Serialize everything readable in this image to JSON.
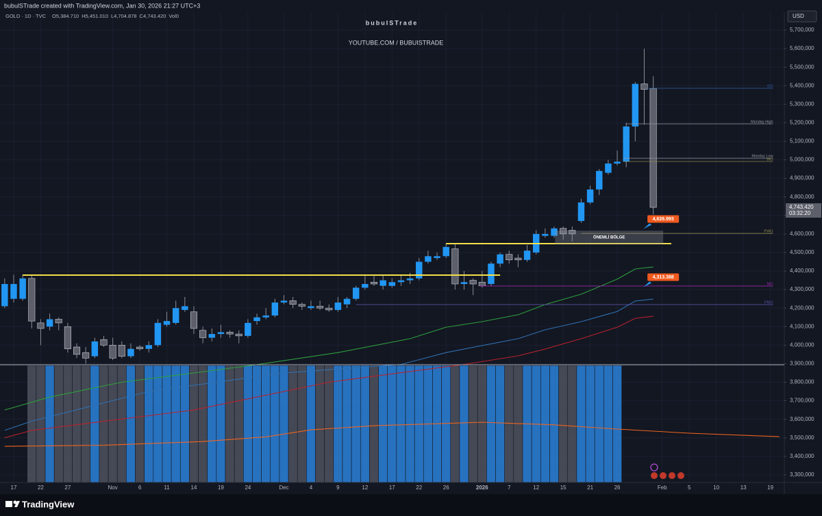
{
  "chart_data": {
    "type": "candlestick",
    "caption": "bubulSTrade created with TradingView.com, Jan 30, 2026 21:27 UTC+3",
    "symbol": "GOLD · 1D · TVC",
    "ohlc_legend": [
      "O5,384.710",
      "H5,451.010",
      "L4,704.878",
      "C4,743.420",
      "Vol0"
    ],
    "title": "bubuISTrade",
    "subtitle": "YOUTUBE.COM / BUBUISTRADE",
    "currency": "USD",
    "brand": "TradingView",
    "colors": {
      "up": "#2196f3",
      "down": "#5d606b",
      "wick": "#8a8e99"
    },
    "grid": true,
    "xlim": [
      -1.52,
      85.55
    ],
    "ylim": [
      3259000,
      5796000
    ],
    "xticks": [
      {
        "value": 0,
        "label": "17"
      },
      {
        "value": 3,
        "label": "22"
      },
      {
        "value": 6,
        "label": "27"
      },
      {
        "value": 11,
        "label": "Nov"
      },
      {
        "value": 14,
        "label": "6"
      },
      {
        "value": 17,
        "label": "11"
      },
      {
        "value": 20,
        "label": "14"
      },
      {
        "value": 23,
        "label": "19"
      },
      {
        "value": 26,
        "label": "24"
      },
      {
        "value": 30,
        "label": "Dec"
      },
      {
        "value": 33,
        "label": "4"
      },
      {
        "value": 36,
        "label": "9"
      },
      {
        "value": 39,
        "label": "12"
      },
      {
        "value": 42,
        "label": "17"
      },
      {
        "value": 45,
        "label": "22"
      },
      {
        "value": 48,
        "label": "26"
      },
      {
        "value": 52,
        "label": "2026"
      },
      {
        "value": 55,
        "label": "7"
      },
      {
        "value": 58,
        "label": "12"
      },
      {
        "value": 61,
        "label": "15"
      },
      {
        "value": 64,
        "label": "21"
      },
      {
        "value": 67,
        "label": "26"
      },
      {
        "value": 72,
        "label": "Feb"
      },
      {
        "value": 75,
        "label": "5"
      },
      {
        "value": 78,
        "label": "10"
      },
      {
        "value": 81,
        "label": "13"
      },
      {
        "value": 84,
        "label": "19"
      }
    ],
    "yticks": [
      {
        "value": 5700000,
        "label": "5,700,000"
      },
      {
        "value": 5600000,
        "label": "5,600,000"
      },
      {
        "value": 5500000,
        "label": "5,500,000"
      },
      {
        "value": 5400000,
        "label": "5,400,000"
      },
      {
        "value": 5300000,
        "label": "5,300,000"
      },
      {
        "value": 5200000,
        "label": "5,200,000"
      },
      {
        "value": 5100000,
        "label": "5,100,000"
      },
      {
        "value": 5000000,
        "label": "5,000,000"
      },
      {
        "value": 4900000,
        "label": "4,900,000"
      },
      {
        "value": 4800000,
        "label": "4,800,000"
      },
      {
        "value": 4700000,
        "label": "4,700,000"
      },
      {
        "value": 4600000,
        "label": "4,600,000"
      },
      {
        "value": 4500000,
        "label": "4,500,000"
      },
      {
        "value": 4400000,
        "label": "4,400,000"
      },
      {
        "value": 4300000,
        "label": "4,300,000"
      },
      {
        "value": 4200000,
        "label": "4,200,000"
      },
      {
        "value": 4100000,
        "label": "4,100,000"
      },
      {
        "value": 4000000,
        "label": "4,000,000"
      },
      {
        "value": 3900000,
        "label": "3,900,000"
      },
      {
        "value": 3800000,
        "label": "3,800,000"
      },
      {
        "value": 3700000,
        "label": "3,700,000"
      },
      {
        "value": 3600000,
        "label": "3,600,000"
      },
      {
        "value": 3500000,
        "label": "3,500,000"
      },
      {
        "value": 3400000,
        "label": "3,400,000"
      },
      {
        "value": 3300000,
        "label": "3,300,000"
      }
    ],
    "candles": {
      "x": [
        -1,
        0,
        1,
        2,
        3,
        4,
        5,
        6,
        7,
        8,
        9,
        10,
        11,
        12,
        13,
        14,
        15,
        16,
        17,
        18,
        19,
        20,
        21,
        22,
        23,
        24,
        25,
        26,
        27,
        28,
        29,
        30,
        31,
        32,
        33,
        34,
        35,
        36,
        37,
        38,
        39,
        40,
        41,
        42,
        43,
        44,
        45,
        46,
        47,
        48,
        49,
        50,
        51,
        52,
        53,
        54,
        55,
        56,
        57,
        58,
        59,
        60,
        61,
        62,
        63,
        64,
        65,
        66,
        67,
        68,
        69,
        70,
        71
      ],
      "open": [
        4210000,
        4250000,
        4250000,
        4360000,
        4120000,
        4100000,
        4140000,
        4100000,
        3990000,
        3960000,
        3940000,
        4030000,
        4000000,
        4000000,
        3940000,
        3990000,
        3980000,
        4000000,
        4110000,
        4120000,
        4190000,
        4180000,
        4080000,
        4040000,
        4060000,
        4070000,
        4060000,
        4050000,
        4130000,
        4150000,
        4160000,
        4230000,
        4240000,
        4220000,
        4200000,
        4210000,
        4200000,
        4190000,
        4220000,
        4250000,
        4310000,
        4340000,
        4320000,
        4320000,
        4340000,
        4350000,
        4360000,
        4450000,
        4470000,
        4480000,
        4520000,
        4330000,
        4350000,
        4340000,
        4330000,
        4440000,
        4490000,
        4470000,
        4460000,
        4500000,
        4590000,
        4590000,
        4630000,
        4620000,
        4670000,
        4770000,
        4840000,
        4930000,
        4980000,
        4990000,
        5180000,
        5410000,
        5384710
      ],
      "high": [
        4360000,
        4380000,
        4380000,
        4380000,
        4140000,
        4170000,
        4150000,
        4120000,
        4010000,
        3990000,
        4040000,
        4050000,
        4040000,
        4020000,
        4010000,
        4000000,
        4020000,
        4140000,
        4180000,
        4240000,
        4260000,
        4210000,
        4100000,
        4090000,
        4110000,
        4080000,
        4080000,
        4140000,
        4170000,
        4200000,
        4250000,
        4270000,
        4260000,
        4230000,
        4240000,
        4240000,
        4220000,
        4260000,
        4260000,
        4320000,
        4380000,
        4380000,
        4380000,
        4360000,
        4380000,
        4390000,
        4470000,
        4510000,
        4500000,
        4550000,
        4550000,
        4400000,
        4360000,
        4400000,
        4450000,
        4500000,
        4510000,
        4490000,
        4540000,
        4620000,
        4630000,
        4640000,
        4640000,
        4640000,
        4790000,
        4860000,
        4950000,
        5000000,
        5050000,
        5200000,
        5420000,
        5600000,
        5451010
      ],
      "low": [
        4200000,
        4230000,
        4240000,
        4090000,
        4000000,
        4080000,
        4080000,
        3960000,
        3930000,
        3900000,
        3930000,
        3990000,
        3920000,
        3930000,
        3930000,
        3970000,
        3960000,
        3990000,
        4100000,
        4110000,
        4180000,
        4060000,
        4010000,
        4020000,
        4040000,
        4040000,
        4010000,
        4040000,
        4110000,
        4140000,
        4150000,
        4220000,
        4200000,
        4190000,
        4190000,
        4190000,
        4180000,
        4180000,
        4200000,
        4240000,
        4300000,
        4320000,
        4300000,
        4310000,
        4320000,
        4330000,
        4350000,
        4440000,
        4460000,
        4470000,
        4300000,
        4300000,
        4270000,
        4310000,
        4320000,
        4420000,
        4440000,
        4420000,
        4450000,
        4490000,
        4580000,
        4580000,
        4570000,
        4560000,
        4660000,
        4760000,
        4810000,
        4920000,
        4970000,
        4960000,
        5100000,
        5190000,
        4704878
      ],
      "close": [
        4330000,
        4330000,
        4360000,
        4130000,
        4090000,
        4140000,
        4120000,
        3980000,
        3950000,
        3930000,
        4020000,
        4000000,
        3930000,
        3940000,
        3980000,
        3980000,
        4000000,
        4120000,
        4130000,
        4200000,
        4210000,
        4090000,
        4040000,
        4060000,
        4070000,
        4060000,
        4050000,
        4120000,
        4150000,
        4160000,
        4230000,
        4240000,
        4220000,
        4210000,
        4210000,
        4200000,
        4190000,
        4230000,
        4250000,
        4310000,
        4330000,
        4330000,
        4350000,
        4340000,
        4350000,
        4360000,
        4450000,
        4480000,
        4480000,
        4530000,
        4330000,
        4340000,
        4330000,
        4320000,
        4440000,
        4490000,
        4460000,
        4460000,
        4510000,
        4600000,
        4600000,
        4630000,
        4600000,
        4600000,
        4770000,
        4840000,
        4940000,
        4980000,
        4990000,
        5180000,
        5410000,
        5380000,
        4743420
      ]
    },
    "series": [
      {
        "color": "#2e9e3e",
        "x": [
          -1,
          4,
          12,
          20,
          27,
          36,
          44,
          48,
          52,
          56,
          59,
          63,
          67,
          69,
          71
        ],
        "values": [
          3650000,
          3720000,
          3800000,
          3850000,
          3895000,
          3960000,
          4035000,
          4097000,
          4127000,
          4164000,
          4219000,
          4275000,
          4356000,
          4411000,
          4422000
        ]
      },
      {
        "color": "#2f6fb0",
        "x": [
          -1,
          2,
          15,
          30,
          43,
          48,
          52,
          56,
          59,
          63,
          67,
          69,
          71
        ],
        "values": [
          3540000,
          3590000,
          3750000,
          3850000,
          3896000,
          3960000,
          3998000,
          4035000,
          4083000,
          4127000,
          4182000,
          4238000,
          4249000
        ]
      },
      {
        "color": "#b7222e",
        "x": [
          -1,
          2,
          20,
          35,
          50,
          56,
          59,
          63,
          67,
          69,
          71
        ],
        "values": [
          3500000,
          3540000,
          3650000,
          3800000,
          3896000,
          3942000,
          3979000,
          4035000,
          4097000,
          4145000,
          4156000
        ]
      },
      {
        "color": "#f0641e",
        "x": [
          -1,
          10,
          21,
          28,
          33,
          40,
          52,
          60,
          67,
          75,
          85
        ],
        "values": [
          3454000,
          3460000,
          3480000,
          3505000,
          3543000,
          3565000,
          3584000,
          3570000,
          3547000,
          3525000,
          3506000
        ]
      }
    ],
    "key_levels": {
      "color": "#f5e04b",
      "lines": [
        {
          "value": 4378000,
          "x": [
            1,
            54
          ]
        },
        {
          "value": 4548000,
          "x": [
            48,
            73
          ]
        }
      ]
    },
    "zone": {
      "label": "ÖNEMLİ BÖLGE",
      "top": 4618000,
      "bottom": 4544000,
      "x": [
        60.1,
        72.1
      ]
    },
    "levels": [
      {
        "label": "DO",
        "value": 5386000,
        "x": [
          70.2,
          84.3
        ],
        "color": "#2f5fa8"
      },
      {
        "label": "Monday High",
        "value": 5194000,
        "x": [
          68,
          84.3
        ],
        "color": "#9598a1"
      },
      {
        "label": "Monday Low",
        "value": 5009000,
        "x": [
          67.7,
          84.3
        ],
        "color": "#9598a1"
      },
      {
        "label": "WO",
        "value": 4991000,
        "x": [
          67.7,
          84.3
        ],
        "color": "#8a8a4a"
      },
      {
        "label": "PWO",
        "value": 4603000,
        "x": [
          63,
          84.3
        ],
        "color": "#8a8a4a"
      },
      {
        "label": "MO",
        "value": 4319000,
        "x": [
          51.7,
          84.3
        ],
        "color": "#9c27b0"
      },
      {
        "label": "PMO",
        "value": 4219000,
        "x": [
          38,
          84.3
        ],
        "color": "#5b4fa8"
      }
    ],
    "price_tags": [
      {
        "value": 4626993,
        "label": "4,626.993",
        "x": 69.9
      },
      {
        "value": 4313388,
        "label": "4,313.388",
        "x": 69.9
      }
    ],
    "last_price": {
      "value": 4743420,
      "label": "4,743.420",
      "countdown": "03:32:20"
    }
  }
}
